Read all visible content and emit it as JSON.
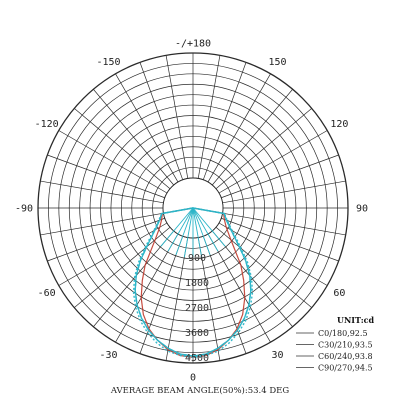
{
  "chart_data": {
    "type": "polar",
    "angle_labels": [
      {
        "angle": 180,
        "text": "-/+180"
      },
      {
        "angle": -150,
        "text": "-150"
      },
      {
        "angle": 150,
        "text": "150"
      },
      {
        "angle": -120,
        "text": "-120"
      },
      {
        "angle": 120,
        "text": "120"
      },
      {
        "angle": -90,
        "text": "-90"
      },
      {
        "angle": 90,
        "text": "90"
      },
      {
        "angle": -60,
        "text": "-60"
      },
      {
        "angle": 60,
        "text": "60"
      },
      {
        "angle": -30,
        "text": "-30"
      },
      {
        "angle": 30,
        "text": "30"
      },
      {
        "angle": 0,
        "text": "0"
      }
    ],
    "ring_labels": [
      "900",
      "1800",
      "2700",
      "3600",
      "4500"
    ],
    "ring_values": [
      900,
      1800,
      2700,
      3600,
      4500
    ],
    "r_max": 4500,
    "units": "UNIT:cd",
    "footer": "AVERAGE BEAM ANGLE(50%):53.4 DEG",
    "colors": {
      "grid": "#2a2a2a",
      "c0": "#c0392b",
      "c90": "#2bb5c8"
    },
    "series": [
      {
        "name": "C0/180,92.5",
        "color": "#c0392b",
        "points": [
          [
            -90,
            0
          ],
          [
            -80,
            40
          ],
          [
            -70,
            120
          ],
          [
            -60,
            300
          ],
          [
            -50,
            700
          ],
          [
            -40,
            1600
          ],
          [
            -35,
            2100
          ],
          [
            -30,
            2650
          ],
          [
            -25,
            3150
          ],
          [
            -20,
            3550
          ],
          [
            -15,
            3850
          ],
          [
            -10,
            4100
          ],
          [
            -5,
            4250
          ],
          [
            0,
            4300
          ],
          [
            5,
            4250
          ],
          [
            10,
            4100
          ],
          [
            15,
            3850
          ],
          [
            20,
            3550
          ],
          [
            25,
            3150
          ],
          [
            30,
            2650
          ],
          [
            35,
            2100
          ],
          [
            40,
            1600
          ],
          [
            50,
            700
          ],
          [
            60,
            300
          ],
          [
            70,
            120
          ],
          [
            80,
            40
          ],
          [
            90,
            0
          ]
        ]
      },
      {
        "name": "C30/210,93.5",
        "color": "#2bb5c8",
        "points": [
          [
            -90,
            0
          ],
          [
            -80,
            60
          ],
          [
            -70,
            200
          ],
          [
            -60,
            500
          ],
          [
            -50,
            1100
          ],
          [
            -45,
            1600
          ],
          [
            -40,
            2100
          ],
          [
            -35,
            2550
          ],
          [
            -30,
            2950
          ],
          [
            -25,
            3300
          ],
          [
            -20,
            3600
          ],
          [
            -15,
            3850
          ],
          [
            -10,
            4050
          ],
          [
            -5,
            4200
          ],
          [
            0,
            4250
          ],
          [
            5,
            4200
          ],
          [
            10,
            4050
          ],
          [
            15,
            3850
          ],
          [
            20,
            3600
          ],
          [
            25,
            3300
          ],
          [
            30,
            2950
          ],
          [
            35,
            2550
          ],
          [
            40,
            2100
          ],
          [
            45,
            1600
          ],
          [
            50,
            1100
          ],
          [
            60,
            500
          ],
          [
            70,
            200
          ],
          [
            80,
            60
          ],
          [
            90,
            0
          ]
        ]
      },
      {
        "name": "C60/240,93.8",
        "color": "#2bb5c8",
        "points": [
          [
            -90,
            0
          ],
          [
            -80,
            60
          ],
          [
            -70,
            200
          ],
          [
            -60,
            500
          ],
          [
            -50,
            1100
          ],
          [
            -45,
            1600
          ],
          [
            -40,
            2100
          ],
          [
            -35,
            2550
          ],
          [
            -30,
            2950
          ],
          [
            -25,
            3300
          ],
          [
            -20,
            3600
          ],
          [
            -15,
            3850
          ],
          [
            -10,
            4050
          ],
          [
            -5,
            4200
          ],
          [
            0,
            4250
          ],
          [
            5,
            4200
          ],
          [
            10,
            4050
          ],
          [
            15,
            3850
          ],
          [
            20,
            3600
          ],
          [
            25,
            3300
          ],
          [
            30,
            2950
          ],
          [
            35,
            2550
          ],
          [
            40,
            2100
          ],
          [
            45,
            1600
          ],
          [
            50,
            1100
          ],
          [
            60,
            500
          ],
          [
            70,
            200
          ],
          [
            80,
            60
          ],
          [
            90,
            0
          ]
        ]
      },
      {
        "name": "C90/270,94.5",
        "color": "#2bb5c8",
        "points": [
          [
            -90,
            0
          ],
          [
            -80,
            70
          ],
          [
            -70,
            230
          ],
          [
            -60,
            550
          ],
          [
            -50,
            1200
          ],
          [
            -45,
            1700
          ],
          [
            -40,
            2200
          ],
          [
            -35,
            2650
          ],
          [
            -30,
            3050
          ],
          [
            -25,
            3400
          ],
          [
            -20,
            3700
          ],
          [
            -15,
            3950
          ],
          [
            -10,
            4150
          ],
          [
            -5,
            4250
          ],
          [
            0,
            4300
          ],
          [
            5,
            4250
          ],
          [
            10,
            4150
          ],
          [
            15,
            3950
          ],
          [
            20,
            3700
          ],
          [
            25,
            3400
          ],
          [
            30,
            3050
          ],
          [
            35,
            2650
          ],
          [
            40,
            2200
          ],
          [
            45,
            1700
          ],
          [
            50,
            1200
          ],
          [
            60,
            550
          ],
          [
            70,
            230
          ],
          [
            80,
            70
          ],
          [
            90,
            0
          ]
        ]
      }
    ]
  }
}
